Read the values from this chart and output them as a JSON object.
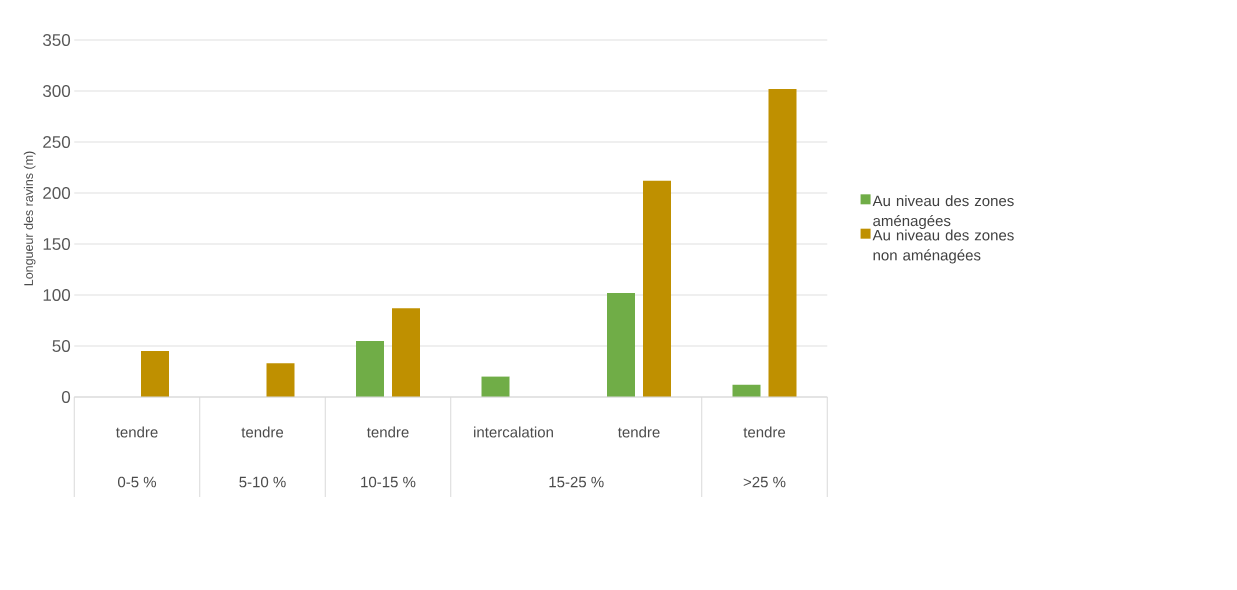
{
  "chart_data": {
    "type": "bar",
    "ylabel": "Longueur des ravins (m)",
    "categories": [
      "tendre",
      "tendre",
      "tendre",
      "intercalation",
      "tendre",
      "tendre"
    ],
    "series": [
      {
        "name": "Au niveau des zones aménagées",
        "color": "#70ad47",
        "values": [
          null,
          null,
          55,
          20,
          102,
          12
        ]
      },
      {
        "name": "Au niveau des zones non aménagées",
        "color": "#bf9000",
        "values": [
          45,
          33,
          87,
          null,
          212,
          302
        ]
      }
    ],
    "annotations": [
      "0-5 %",
      "5-10 %",
      "10-15 %",
      "15-25 %",
      ">25 %"
    ],
    "ylim": [
      0,
      350
    ],
    "yticks": [
      0,
      50,
      100,
      150,
      200,
      250,
      300,
      350
    ],
    "grid": "y",
    "legend": "right"
  }
}
